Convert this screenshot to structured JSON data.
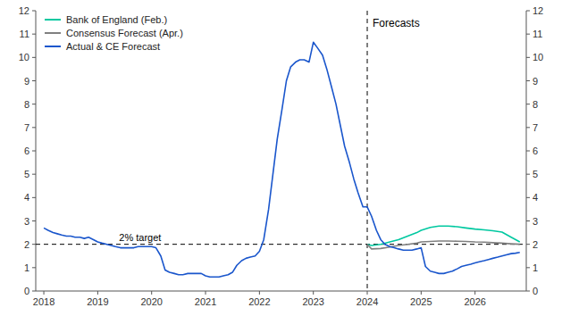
{
  "chart_data": {
    "type": "line",
    "xlim": [
      2017.85,
      2026.95
    ],
    "xticks": [
      2018,
      2019,
      2020,
      2021,
      2022,
      2023,
      2024,
      2025,
      2026
    ],
    "ylim": [
      0,
      12
    ],
    "yticks": [
      0,
      1,
      2,
      3,
      4,
      5,
      6,
      7,
      8,
      9,
      10,
      11,
      12
    ],
    "y2lim": [
      0,
      12
    ],
    "y2ticks": [
      0,
      1,
      2,
      3,
      4,
      5,
      6,
      7,
      8,
      9,
      10,
      11,
      12
    ],
    "grid": false,
    "legend": "upper left",
    "reference_lines": [
      {
        "axis": "y",
        "value": 2.0,
        "label": "2% target"
      },
      {
        "axis": "x",
        "value": 2024.0,
        "label": "Forecasts"
      }
    ],
    "series": [
      {
        "name": "Bank of England (Feb.)",
        "color": "#00c8a0",
        "x": [
          2024.0,
          2024.08,
          2024.25,
          2024.42,
          2024.58,
          2024.75,
          2024.92,
          2025.0,
          2025.17,
          2025.33,
          2025.5,
          2025.67,
          2025.83,
          2026.0,
          2026.17,
          2026.33,
          2026.5,
          2026.67,
          2026.83
        ],
        "values": [
          2.0,
          1.95,
          2.0,
          2.1,
          2.2,
          2.35,
          2.5,
          2.6,
          2.72,
          2.78,
          2.78,
          2.75,
          2.7,
          2.65,
          2.62,
          2.58,
          2.52,
          2.3,
          2.1
        ]
      },
      {
        "name": "Consensus Forecast (Apr.)",
        "color": "#808080",
        "x": [
          2024.0,
          2024.08,
          2024.25,
          2024.42,
          2024.58,
          2024.75,
          2024.92,
          2025.0,
          2025.17,
          2025.33,
          2025.5,
          2025.67,
          2025.83,
          2026.0,
          2026.17,
          2026.33,
          2026.5,
          2026.67,
          2026.83
        ],
        "values": [
          2.0,
          1.8,
          1.82,
          1.88,
          1.95,
          2.0,
          2.05,
          2.1,
          2.12,
          2.14,
          2.14,
          2.13,
          2.12,
          2.1,
          2.09,
          2.07,
          2.05,
          2.02,
          2.0
        ]
      },
      {
        "name": "Actual & CE Forecast",
        "color": "#1a56cc",
        "x": [
          2018.0,
          2018.08,
          2018.17,
          2018.25,
          2018.33,
          2018.42,
          2018.5,
          2018.58,
          2018.67,
          2018.75,
          2018.83,
          2018.92,
          2019.0,
          2019.08,
          2019.17,
          2019.25,
          2019.33,
          2019.42,
          2019.5,
          2019.58,
          2019.67,
          2019.75,
          2019.83,
          2019.92,
          2020.0,
          2020.08,
          2020.17,
          2020.25,
          2020.33,
          2020.42,
          2020.5,
          2020.58,
          2020.67,
          2020.75,
          2020.83,
          2020.92,
          2021.0,
          2021.08,
          2021.17,
          2021.25,
          2021.33,
          2021.42,
          2021.5,
          2021.58,
          2021.67,
          2021.75,
          2021.83,
          2021.92,
          2022.0,
          2022.08,
          2022.17,
          2022.25,
          2022.33,
          2022.42,
          2022.5,
          2022.58,
          2022.67,
          2022.75,
          2022.83,
          2022.92,
          2023.0,
          2023.08,
          2023.17,
          2023.25,
          2023.33,
          2023.42,
          2023.5,
          2023.58,
          2023.67,
          2023.75,
          2023.83,
          2023.92,
          2024.0,
          2024.08,
          2024.17,
          2024.25,
          2024.33,
          2024.42,
          2024.5,
          2024.58,
          2024.67,
          2024.75,
          2024.83,
          2024.92,
          2025.0,
          2025.08,
          2025.17,
          2025.25,
          2025.33,
          2025.42,
          2025.5,
          2025.58,
          2025.67,
          2025.75,
          2025.83,
          2025.92,
          2026.0,
          2026.08,
          2026.17,
          2026.25,
          2026.33,
          2026.42,
          2026.5,
          2026.58,
          2026.67,
          2026.75,
          2026.83
        ],
        "values": [
          2.7,
          2.6,
          2.5,
          2.45,
          2.4,
          2.35,
          2.35,
          2.3,
          2.3,
          2.25,
          2.3,
          2.2,
          2.1,
          2.05,
          2.0,
          1.95,
          1.9,
          1.85,
          1.85,
          1.85,
          1.85,
          1.9,
          1.9,
          1.9,
          1.9,
          1.85,
          1.5,
          0.9,
          0.8,
          0.75,
          0.7,
          0.7,
          0.75,
          0.75,
          0.75,
          0.75,
          0.65,
          0.6,
          0.6,
          0.6,
          0.65,
          0.7,
          0.8,
          1.1,
          1.3,
          1.4,
          1.45,
          1.5,
          1.7,
          2.2,
          3.5,
          5.0,
          6.5,
          7.8,
          9.0,
          9.6,
          9.8,
          9.9,
          9.9,
          9.8,
          10.65,
          10.4,
          10.1,
          9.5,
          8.8,
          8.0,
          7.1,
          6.2,
          5.5,
          4.8,
          4.2,
          3.6,
          3.6,
          3.2,
          2.6,
          2.2,
          2.0,
          1.9,
          1.85,
          1.8,
          1.75,
          1.75,
          1.75,
          1.8,
          1.85,
          1.05,
          0.85,
          0.8,
          0.75,
          0.75,
          0.8,
          0.85,
          0.95,
          1.05,
          1.1,
          1.15,
          1.2,
          1.25,
          1.3,
          1.35,
          1.4,
          1.45,
          1.5,
          1.55,
          1.6,
          1.62,
          1.65
        ]
      }
    ]
  }
}
